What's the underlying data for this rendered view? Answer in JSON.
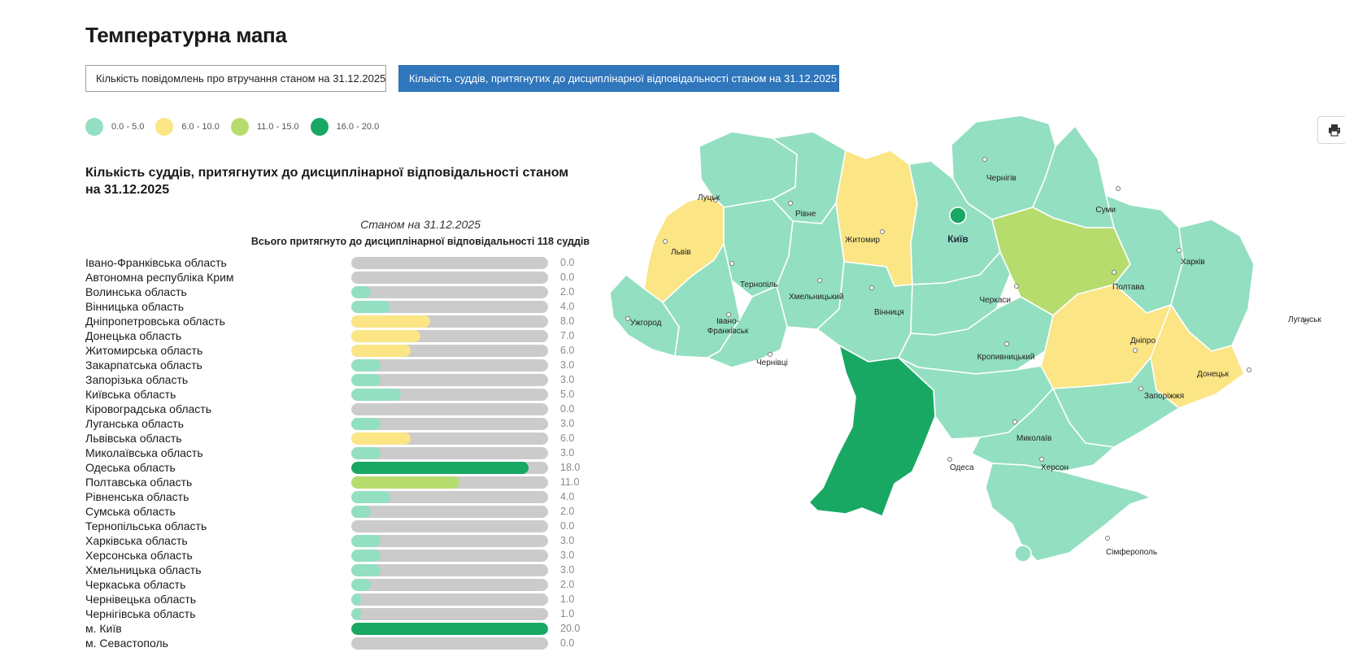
{
  "page": {
    "title": "Температурна мапа"
  },
  "tabs": [
    {
      "label": "Кількість повідомлень про втручання станом на 31.12.2025",
      "active": false
    },
    {
      "label": "Кількість суддів, притягнутих до дисциплінарної відповідальності станом на 31.12.2025",
      "active": true
    }
  ],
  "legend": [
    {
      "label": "0.0 - 5.0",
      "color": "#93dfc1"
    },
    {
      "label": "6.0 - 10.0",
      "color": "#fbe585"
    },
    {
      "label": "11.0 - 15.0",
      "color": "#b6dc6d"
    },
    {
      "label": "16.0 - 20.0",
      "color": "#18a864"
    }
  ],
  "section": {
    "title": "Кількість суддів, притягнутих до дисциплінарної відповідальності станом на 31.12.2025",
    "as_of": "Станом на 31.12.2025",
    "total": "Всього притягнуто до дисциплінарної відповідальності 118 суддів"
  },
  "scale_max": 20,
  "rows": [
    {
      "region": "Івано-Франківська область",
      "value": 0.0,
      "display": "0.0"
    },
    {
      "region": "Автономна республіка Крим",
      "value": 0.0,
      "display": "0.0"
    },
    {
      "region": "Волинська область",
      "value": 2.0,
      "display": "2.0"
    },
    {
      "region": "Вінницька область",
      "value": 4.0,
      "display": "4.0"
    },
    {
      "region": "Дніпропетровська область",
      "value": 8.0,
      "display": "8.0"
    },
    {
      "region": "Донецька область",
      "value": 7.0,
      "display": "7.0"
    },
    {
      "region": "Житомирська область",
      "value": 6.0,
      "display": "6.0"
    },
    {
      "region": "Закарпатська область",
      "value": 3.0,
      "display": "3.0"
    },
    {
      "region": "Запорізька область",
      "value": 3.0,
      "display": "3.0"
    },
    {
      "region": "Київська область",
      "value": 5.0,
      "display": "5.0"
    },
    {
      "region": "Кіровоградська область",
      "value": 0.0,
      "display": "0.0"
    },
    {
      "region": "Луганська область",
      "value": 3.0,
      "display": "3.0"
    },
    {
      "region": "Львівська область",
      "value": 6.0,
      "display": "6.0"
    },
    {
      "region": "Миколаївська область",
      "value": 3.0,
      "display": "3.0"
    },
    {
      "region": "Одеська область",
      "value": 18.0,
      "display": "18.0"
    },
    {
      "region": "Полтавська область",
      "value": 11.0,
      "display": "11.0"
    },
    {
      "region": "Рівненська область",
      "value": 4.0,
      "display": "4.0"
    },
    {
      "region": "Сумська область",
      "value": 2.0,
      "display": "2.0"
    },
    {
      "region": "Тернопільська область",
      "value": 0.0,
      "display": "0.0"
    },
    {
      "region": "Харківська область",
      "value": 3.0,
      "display": "3.0"
    },
    {
      "region": "Херсонська область",
      "value": 3.0,
      "display": "3.0"
    },
    {
      "region": "Хмельницька область",
      "value": 3.0,
      "display": "3.0"
    },
    {
      "region": "Черкаська область",
      "value": 2.0,
      "display": "2.0"
    },
    {
      "region": "Чернівецька область",
      "value": 1.0,
      "display": "1.0"
    },
    {
      "region": "Чернігівська область",
      "value": 1.0,
      "display": "1.0"
    },
    {
      "region": "м. Київ",
      "value": 20.0,
      "display": "20.0"
    },
    {
      "region": "м. Севастополь",
      "value": 0.0,
      "display": "0.0"
    }
  ],
  "map": {
    "cities": {
      "lutsk": "Луцьк",
      "rivne": "Рівне",
      "zhytomyr": "Житомир",
      "kyiv": "Київ",
      "chernihiv": "Чернігів",
      "sumy": "Суми",
      "lviv": "Львів",
      "ternopil": "Тернопіль",
      "khmelnytskyi": "Хмельницький",
      "vinnytsia": "Вінниця",
      "cherkasy": "Черкаси",
      "poltava": "Полтава",
      "kharkiv": "Харків",
      "uzhhorod": "Ужгород",
      "ivano_frankivsk_1": "Івано-",
      "ivano_frankivsk_2": "Франківськ",
      "chernivtsi": "Чернівці",
      "kropyvnytskyi": "Кропивницький",
      "dnipro": "Дніпро",
      "luhansk": "Луганськ",
      "donetsk": "Донецьк",
      "zaporizhzhia": "Запоріжжя",
      "mykolaiv": "Миколаїв",
      "kherson": "Херсон",
      "odesa": "Одеса",
      "simferopol": "Сімферополь"
    }
  },
  "icons": {
    "print": "printer-icon"
  }
}
